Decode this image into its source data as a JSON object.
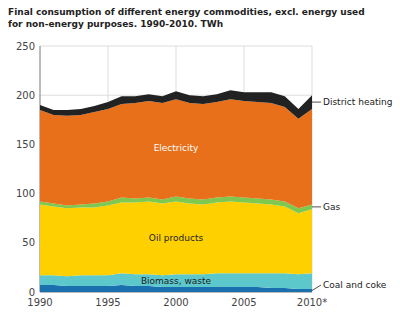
{
  "chart_data": {
    "type": "area",
    "stacked": true,
    "title": "Final consumption of different energy commodities, excl. energy used\nfor non-energy purposes. 1990-2010. TWh",
    "x": [
      1990,
      1991,
      1992,
      1993,
      1994,
      1995,
      1996,
      1997,
      1998,
      1999,
      2000,
      2001,
      2002,
      2003,
      2004,
      2005,
      2006,
      2007,
      2008,
      2009,
      2010
    ],
    "series": [
      {
        "name": "Coal and coke",
        "color": "#1a6faf",
        "values": [
          7,
          7,
          6,
          6,
          6,
          6,
          7,
          6,
          6,
          5,
          5,
          5,
          5,
          5,
          5,
          5,
          5,
          4,
          4,
          3,
          3
        ]
      },
      {
        "name": "Biomass, waste",
        "color": "#5dc8cc",
        "values": [
          10,
          10,
          10,
          11,
          11,
          11,
          12,
          12,
          12,
          12,
          13,
          13,
          13,
          14,
          14,
          14,
          14,
          15,
          15,
          15,
          16
        ]
      },
      {
        "name": "Oil products",
        "color": "#ffd000",
        "values": [
          72,
          70,
          69,
          69,
          69,
          71,
          72,
          73,
          74,
          73,
          74,
          72,
          71,
          72,
          73,
          72,
          71,
          70,
          68,
          62,
          65
        ]
      },
      {
        "name": "Gas",
        "color": "#7ec850",
        "values": [
          3,
          3,
          3,
          3,
          4,
          4,
          5,
          4,
          4,
          4,
          5,
          5,
          5,
          5,
          5,
          5,
          5,
          5,
          5,
          5,
          5
        ]
      },
      {
        "name": "Electricity",
        "color": "#e8701a",
        "values": [
          93,
          90,
          91,
          91,
          93,
          94,
          95,
          97,
          98,
          98,
          99,
          97,
          97,
          97,
          99,
          98,
          98,
          98,
          96,
          91,
          97
        ]
      },
      {
        "name": "District heating",
        "color": "#222222",
        "values": [
          5,
          5,
          6,
          6,
          6,
          7,
          8,
          7,
          7,
          7,
          8,
          8,
          8,
          8,
          9,
          9,
          10,
          11,
          11,
          10,
          14
        ]
      }
    ],
    "xlim": [
      1990,
      2010
    ],
    "xticks": [
      1990,
      1995,
      2000,
      2005,
      {
        "value": 2010,
        "label": "2010*"
      }
    ],
    "ylim": [
      0,
      250
    ],
    "yticks": [
      0,
      50,
      100,
      150,
      200,
      250
    ],
    "grid": true
  }
}
